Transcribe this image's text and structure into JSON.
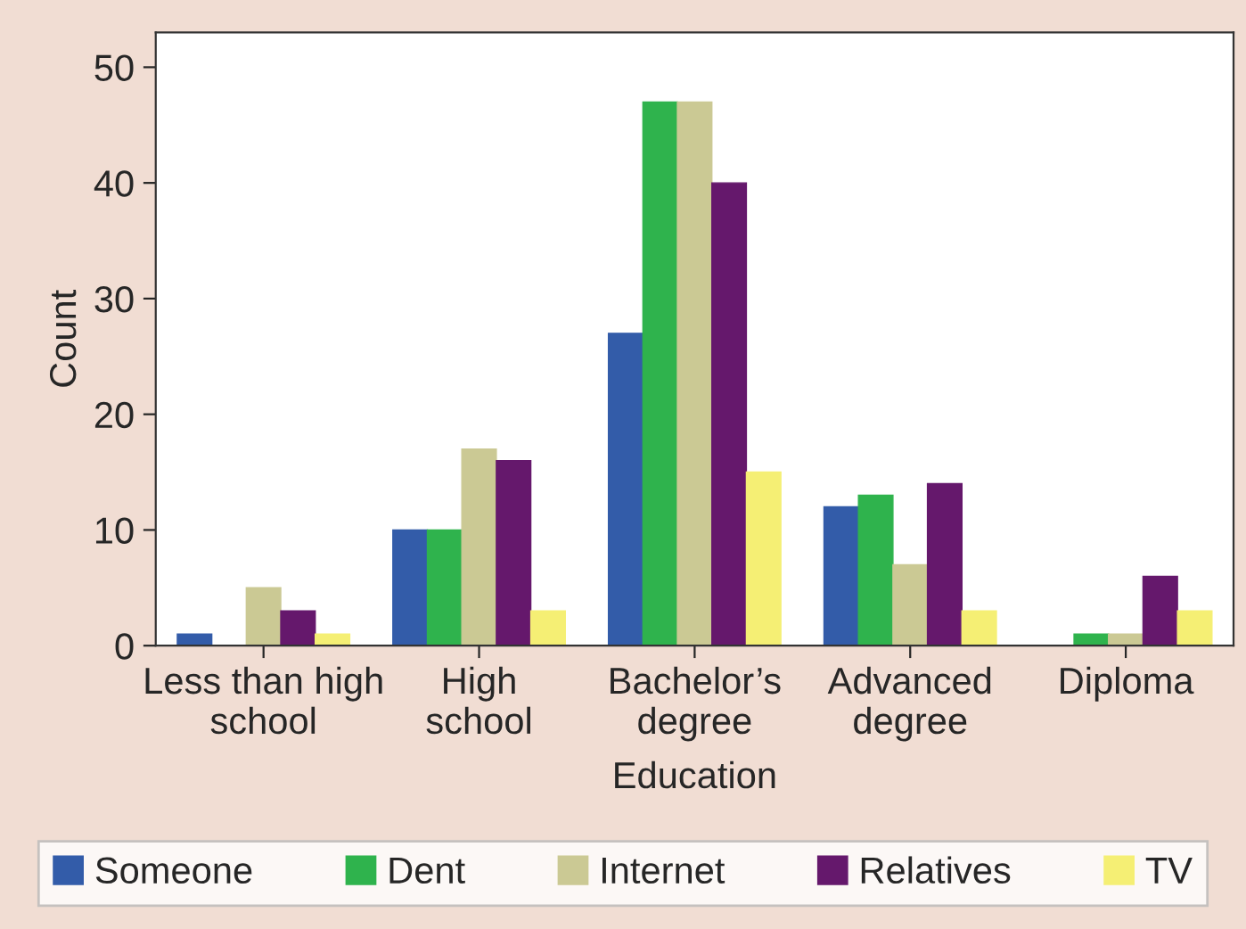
{
  "chart_data": {
    "type": "bar",
    "xlabel": "Education",
    "ylabel": "Count",
    "categories": [
      "Less than high\nschool",
      "High\nschool",
      "Bachelor’s\ndegree",
      "Advanced\ndegree",
      "Diploma"
    ],
    "series": [
      {
        "name": "Someone",
        "color": "#335ca9",
        "values": [
          1,
          10,
          27,
          12,
          0
        ]
      },
      {
        "name": "Dent",
        "color": "#2fb34d",
        "values": [
          0,
          10,
          47,
          13,
          1
        ]
      },
      {
        "name": "Internet",
        "color": "#cbc994",
        "values": [
          5,
          17,
          47,
          7,
          1
        ]
      },
      {
        "name": "Relatives",
        "color": "#65186c",
        "values": [
          3,
          16,
          40,
          14,
          6
        ]
      },
      {
        "name": "TV",
        "color": "#f5ef74",
        "values": [
          1,
          3,
          15,
          3,
          3
        ]
      }
    ],
    "ylim": [
      0,
      53
    ],
    "yticks": [
      0,
      10,
      20,
      30,
      40,
      50
    ],
    "grid": false,
    "legend": "bottom"
  }
}
